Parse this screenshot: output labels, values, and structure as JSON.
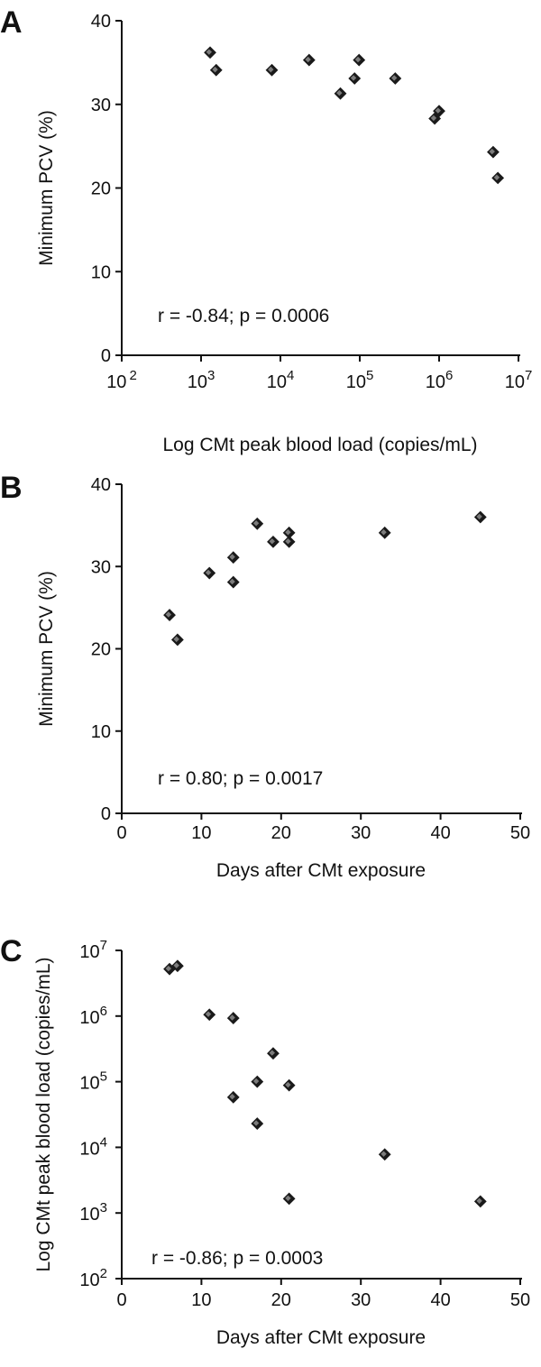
{
  "chart_data": [
    {
      "panel": "A",
      "type": "scatter",
      "xlabel": "Log CMt peak blood load (copies/mL)",
      "ylabel": "Minimum  PCV (%)",
      "annotation": "r = -0.84; p = 0.0006",
      "x_scale": "log",
      "xlim": [
        100,
        10000000
      ],
      "ylim": [
        0,
        40
      ],
      "x_tick_values": [
        100,
        1000,
        10000,
        100000,
        1000000,
        10000000
      ],
      "x_tick_mantissa": "10",
      "x_tick_exponents": [
        "2",
        "3",
        "4",
        "5",
        "6",
        "7"
      ],
      "y_tick_values": [
        0,
        10,
        20,
        30,
        40
      ],
      "y_tick_labels": [
        "0",
        "10",
        "20",
        "30",
        "40"
      ],
      "grid": false,
      "points": [
        {
          "x": 1300,
          "y": 36.2
        },
        {
          "x": 1550,
          "y": 34.1
        },
        {
          "x": 7800,
          "y": 34.1
        },
        {
          "x": 23000,
          "y": 35.3
        },
        {
          "x": 57000,
          "y": 31.3
        },
        {
          "x": 86000,
          "y": 33.1
        },
        {
          "x": 98000,
          "y": 35.3
        },
        {
          "x": 280000,
          "y": 33.1
        },
        {
          "x": 880000,
          "y": 28.3
        },
        {
          "x": 1000000,
          "y": 29.2
        },
        {
          "x": 4800000,
          "y": 24.3
        },
        {
          "x": 5500000,
          "y": 21.2
        }
      ]
    },
    {
      "panel": "B",
      "type": "scatter",
      "xlabel": "Days after CMt exposure",
      "ylabel": "Minimum PCV (%)",
      "annotation": "r = 0.80; p = 0.0017",
      "x_scale": "linear",
      "xlim": [
        0,
        50
      ],
      "ylim": [
        0,
        40
      ],
      "x_tick_values": [
        0,
        10,
        20,
        30,
        40,
        50
      ],
      "x_tick_labels": [
        "0",
        "10",
        "20",
        "30",
        "40",
        "50"
      ],
      "y_tick_values": [
        0,
        10,
        20,
        30,
        40
      ],
      "y_tick_labels": [
        "0",
        "10",
        "20",
        "30",
        "40"
      ],
      "grid": false,
      "points": [
        {
          "x": 6,
          "y": 24.1
        },
        {
          "x": 7,
          "y": 21.1
        },
        {
          "x": 11,
          "y": 29.2
        },
        {
          "x": 14,
          "y": 31.1
        },
        {
          "x": 14,
          "y": 28.1
        },
        {
          "x": 17,
          "y": 35.2
        },
        {
          "x": 19,
          "y": 33.0
        },
        {
          "x": 21,
          "y": 34.1
        },
        {
          "x": 21,
          "y": 33.0
        },
        {
          "x": 33,
          "y": 34.1
        },
        {
          "x": 45,
          "y": 36.0
        }
      ]
    },
    {
      "panel": "C",
      "type": "scatter",
      "xlabel": "Days after CMt exposure",
      "ylabel": "Log CMt peak blood load (copies/mL)",
      "annotation": "r = -0.86; p = 0.0003",
      "x_scale": "linear",
      "y_scale": "log",
      "xlim": [
        0,
        50
      ],
      "ylim": [
        100,
        10000000
      ],
      "x_tick_values": [
        0,
        10,
        20,
        30,
        40,
        50
      ],
      "x_tick_labels": [
        "0",
        "10",
        "20",
        "30",
        "40",
        "50"
      ],
      "y_tick_values": [
        100,
        1000,
        10000,
        100000,
        1000000,
        10000000
      ],
      "y_tick_mantissa": "10",
      "y_tick_exponents": [
        "2",
        "3",
        "4",
        "5",
        "6",
        "7"
      ],
      "grid": false,
      "points": [
        {
          "x": 6,
          "y": 5200000
        },
        {
          "x": 7,
          "y": 5800000
        },
        {
          "x": 11,
          "y": 1050000
        },
        {
          "x": 14,
          "y": 930000
        },
        {
          "x": 14,
          "y": 58000
        },
        {
          "x": 17,
          "y": 100000
        },
        {
          "x": 17,
          "y": 23000
        },
        {
          "x": 19,
          "y": 270000
        },
        {
          "x": 21,
          "y": 88000
        },
        {
          "x": 21,
          "y": 1650
        },
        {
          "x": 33,
          "y": 7800
        },
        {
          "x": 45,
          "y": 1500
        }
      ]
    }
  ]
}
